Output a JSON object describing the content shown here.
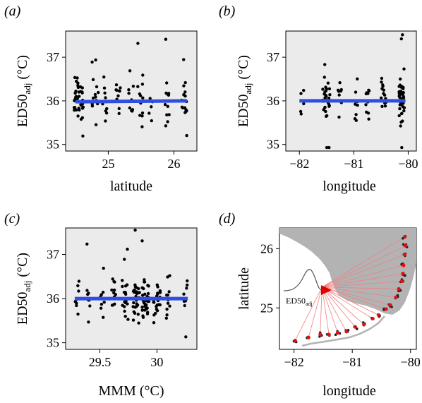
{
  "chart_data": [
    {
      "panel_label": "(a)",
      "type": "scatter",
      "xlabel": "latitude",
      "ylabel_main": "ED50",
      "ylabel_sub": "adj",
      "ylabel_unit": " (°C)",
      "xticks": [
        25,
        26
      ],
      "yticks": [
        35,
        36,
        37
      ],
      "xlim": [
        24.35,
        26.35
      ],
      "ylim": [
        34.85,
        37.6
      ],
      "fit": {
        "x": [
          24.5,
          26.2
        ],
        "y": [
          35.98,
          36.0
        ],
        "color": "#2e4fe0"
      },
      "clusters": [
        {
          "x": 24.55,
          "spread": 0.07,
          "n": 42
        },
        {
          "x": 24.8,
          "spread": 0.05,
          "n": 14
        },
        {
          "x": 24.95,
          "spread": 0.04,
          "n": 10
        },
        {
          "x": 25.15,
          "spread": 0.05,
          "n": 10
        },
        {
          "x": 25.35,
          "spread": 0.04,
          "n": 9
        },
        {
          "x": 25.5,
          "spread": 0.05,
          "n": 12
        },
        {
          "x": 25.65,
          "spread": 0.03,
          "n": 5
        },
        {
          "x": 25.9,
          "spread": 0.04,
          "n": 12
        },
        {
          "x": 26.15,
          "spread": 0.05,
          "n": 18
        }
      ]
    },
    {
      "panel_label": "(b)",
      "type": "scatter",
      "xlabel": "longitude",
      "ylabel_main": "ED50",
      "ylabel_sub": "adj",
      "ylabel_unit": " (°C)",
      "xticks": [
        -82,
        -81,
        -80
      ],
      "yticks": [
        35,
        36,
        37
      ],
      "xlim": [
        -82.25,
        -79.85
      ],
      "ylim": [
        34.85,
        37.6
      ],
      "fit": {
        "x": [
          -82.0,
          -80.05
        ],
        "y": [
          36.0,
          36.0
        ],
        "color": "#2e4fe0"
      },
      "clusters": [
        {
          "x": -81.95,
          "spread": 0.03,
          "n": 5
        },
        {
          "x": -81.5,
          "spread": 0.07,
          "n": 30
        },
        {
          "x": -81.25,
          "spread": 0.04,
          "n": 8
        },
        {
          "x": -80.95,
          "spread": 0.04,
          "n": 9
        },
        {
          "x": -80.75,
          "spread": 0.04,
          "n": 10
        },
        {
          "x": -80.45,
          "spread": 0.05,
          "n": 16
        },
        {
          "x": -80.12,
          "spread": 0.05,
          "n": 45
        }
      ]
    },
    {
      "panel_label": "(c)",
      "type": "scatter",
      "xlabel": "MMM (°C)",
      "ylabel_main": "ED50",
      "ylabel_sub": "adj",
      "ylabel_unit": " (°C)",
      "xticks": [
        29.5,
        30
      ],
      "xtick_labels": [
        "29.5",
        "30"
      ],
      "yticks": [
        35,
        36,
        37
      ],
      "xlim": [
        29.2,
        30.35
      ],
      "ylim": [
        34.85,
        37.6
      ],
      "fit": {
        "x": [
          29.28,
          30.27
        ],
        "y": [
          36.0,
          36.0
        ],
        "color": "#2e4fe0"
      },
      "clusters": [
        {
          "x": 29.3,
          "spread": 0.02,
          "n": 8
        },
        {
          "x": 29.4,
          "spread": 0.02,
          "n": 8
        },
        {
          "x": 29.52,
          "spread": 0.02,
          "n": 8
        },
        {
          "x": 29.62,
          "spread": 0.02,
          "n": 12
        },
        {
          "x": 29.72,
          "spread": 0.03,
          "n": 20
        },
        {
          "x": 29.82,
          "spread": 0.03,
          "n": 30
        },
        {
          "x": 29.9,
          "spread": 0.03,
          "n": 34
        },
        {
          "x": 30.0,
          "spread": 0.03,
          "n": 22
        },
        {
          "x": 30.1,
          "spread": 0.02,
          "n": 12
        },
        {
          "x": 30.25,
          "spread": 0.02,
          "n": 8
        }
      ]
    },
    {
      "panel_label": "(d)",
      "type": "map",
      "xlabel": "longitude",
      "ylabel": "latitude",
      "xticks": [
        -82,
        -81,
        -80
      ],
      "yticks": [
        25,
        26
      ],
      "xlim": [
        -82.25,
        -79.9
      ],
      "ylim": [
        24.3,
        26.35
      ],
      "inset_label_main": "ED50",
      "inset_label_sub": "adj",
      "hub": {
        "lon": -81.52,
        "lat": 25.35
      },
      "sites": [
        {
          "lon": -80.1,
          "lat": 26.2
        },
        {
          "lon": -80.09,
          "lat": 26.05
        },
        {
          "lon": -80.1,
          "lat": 25.9
        },
        {
          "lon": -80.12,
          "lat": 25.72
        },
        {
          "lon": -80.13,
          "lat": 25.58
        },
        {
          "lon": -80.15,
          "lat": 25.45
        },
        {
          "lon": -80.2,
          "lat": 25.32
        },
        {
          "lon": -80.25,
          "lat": 25.18
        },
        {
          "lon": -80.35,
          "lat": 25.05
        },
        {
          "lon": -80.42,
          "lat": 24.98
        },
        {
          "lon": -80.55,
          "lat": 24.88
        },
        {
          "lon": -80.65,
          "lat": 24.82
        },
        {
          "lon": -80.8,
          "lat": 24.72
        },
        {
          "lon": -80.95,
          "lat": 24.68
        },
        {
          "lon": -81.1,
          "lat": 24.6
        },
        {
          "lon": -81.25,
          "lat": 24.58
        },
        {
          "lon": -81.4,
          "lat": 24.55
        },
        {
          "lon": -81.55,
          "lat": 24.55
        },
        {
          "lon": -81.75,
          "lat": 24.5
        },
        {
          "lon": -81.98,
          "lat": 24.45
        }
      ],
      "colors": {
        "land": "#b3b3b3",
        "spoke": "#f08080",
        "site": "#e01010",
        "hub": "#e00000"
      }
    }
  ]
}
